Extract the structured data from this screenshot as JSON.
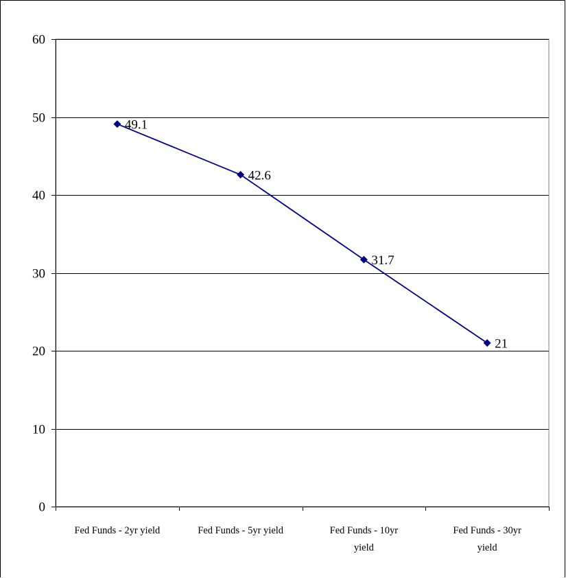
{
  "chart_data": {
    "type": "line",
    "categories": [
      [
        "Fed Funds - 2yr yield"
      ],
      [
        "Fed Funds - 5yr yield"
      ],
      [
        "Fed Funds - 10yr",
        "yield"
      ],
      [
        "Fed Funds - 30yr",
        "yield"
      ]
    ],
    "values": [
      49.1,
      42.6,
      31.7,
      21
    ],
    "data_labels": [
      "49.1",
      "42.6",
      "31.7",
      "21"
    ],
    "ylim": [
      0,
      60
    ],
    "yticks": [
      0,
      10,
      20,
      30,
      40,
      50,
      60
    ],
    "grid": true,
    "legend": "none",
    "series_color": "#000080",
    "grid_color": "#000000",
    "marker": "diamond"
  }
}
